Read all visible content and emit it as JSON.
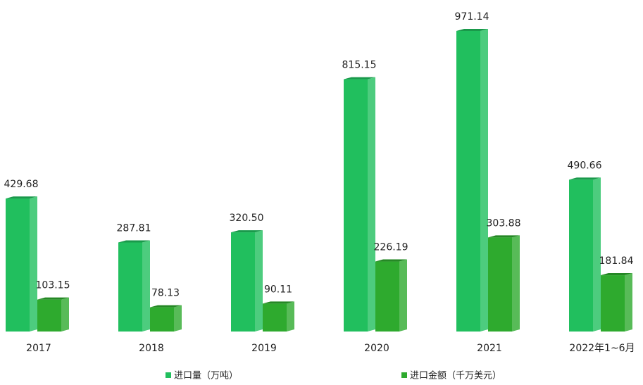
{
  "chart_data": {
    "type": "bar3d",
    "categories": [
      "2017",
      "2018",
      "2019",
      "2020",
      "2021",
      "2022年1~6月"
    ],
    "series": [
      {
        "name": "进口量（万吨）",
        "color": "#21bf5e",
        "values": [
          429.68,
          287.81,
          320.5,
          815.15,
          971.14,
          490.66
        ],
        "value_labels": [
          "429.68",
          "287.81",
          "320.50",
          "815.15",
          "971.14",
          "490.66"
        ]
      },
      {
        "name": "进口金额（千万美元）",
        "color": "#2eaa2e",
        "values": [
          103.15,
          78.13,
          90.11,
          226.19,
          303.88,
          181.84
        ],
        "value_labels": [
          "103.15",
          "78.13",
          "90.11",
          "226.19",
          "303.88",
          "181.84"
        ]
      }
    ],
    "legend": "bottom"
  }
}
